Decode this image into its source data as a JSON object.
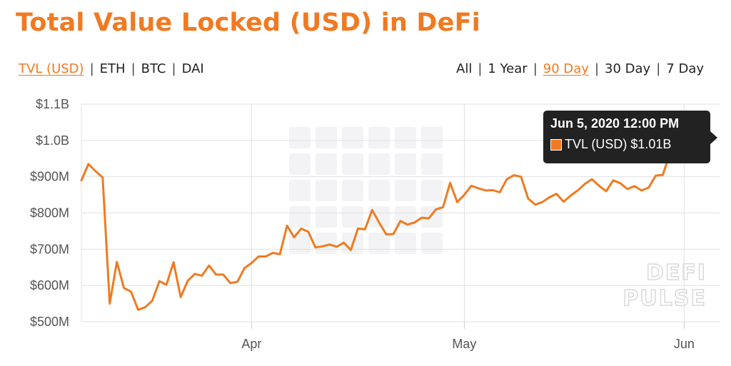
{
  "title": "Total Value Locked (USD) in DeFi",
  "currency_options": [
    {
      "label": "TVL (USD)",
      "active": true
    },
    {
      "label": "ETH",
      "active": false
    },
    {
      "label": "BTC",
      "active": false
    },
    {
      "label": "DAI",
      "active": false
    }
  ],
  "range_options": [
    {
      "label": "All",
      "active": false
    },
    {
      "label": "1 Year",
      "active": false
    },
    {
      "label": "90 Day",
      "active": true
    },
    {
      "label": "30 Day",
      "active": false
    },
    {
      "label": "7 Day",
      "active": false
    }
  ],
  "tooltip": {
    "date": "Jun 5, 2020 12:00 PM",
    "series_label": "TVL (USD)",
    "value": "$1.01B"
  },
  "watermark": [
    "DEFI",
    "PULSE"
  ],
  "colors": {
    "line": "#f07a22",
    "accent": "#f07a22",
    "grid": "#e0e0e0",
    "tooltip_bg": "#222222"
  },
  "chart_data": {
    "type": "line",
    "xlim": [
      "2020-03-08",
      "2020-06-06"
    ],
    "ylim": [
      500,
      1100
    ],
    "y_unit": "USD millions",
    "y_ticks": [
      {
        "value": 500,
        "label": "$500M"
      },
      {
        "value": 600,
        "label": "$600M"
      },
      {
        "value": 700,
        "label": "$700M"
      },
      {
        "value": 800,
        "label": "$800M"
      },
      {
        "value": 900,
        "label": "$900M"
      },
      {
        "value": 1000,
        "label": "$1.0B"
      },
      {
        "value": 1100,
        "label": "$1.1B"
      }
    ],
    "x_ticks": [
      {
        "value": "2020-04-01",
        "label": "Apr"
      },
      {
        "value": "2020-05-01",
        "label": "May"
      },
      {
        "value": "2020-06-01",
        "label": "Jun"
      }
    ],
    "grid": true,
    "legend": "none",
    "series": [
      {
        "name": "TVL (USD)",
        "points": [
          [
            "2020-03-08",
            890
          ],
          [
            "2020-03-09",
            935
          ],
          [
            "2020-03-10",
            915
          ],
          [
            "2020-03-11",
            898
          ],
          [
            "2020-03-12",
            550
          ],
          [
            "2020-03-13",
            665
          ],
          [
            "2020-03-14",
            593
          ],
          [
            "2020-03-15",
            583
          ],
          [
            "2020-03-16",
            533
          ],
          [
            "2020-03-17",
            540
          ],
          [
            "2020-03-18",
            558
          ],
          [
            "2020-03-19",
            612
          ],
          [
            "2020-03-20",
            602
          ],
          [
            "2020-03-21",
            664
          ],
          [
            "2020-03-22",
            568
          ],
          [
            "2020-03-23",
            613
          ],
          [
            "2020-03-24",
            632
          ],
          [
            "2020-03-25",
            627
          ],
          [
            "2020-03-26",
            655
          ],
          [
            "2020-03-27",
            630
          ],
          [
            "2020-03-28",
            630
          ],
          [
            "2020-03-29",
            607
          ],
          [
            "2020-03-30",
            610
          ],
          [
            "2020-03-31",
            648
          ],
          [
            "2020-04-01",
            662
          ],
          [
            "2020-04-02",
            680
          ],
          [
            "2020-04-03",
            680
          ],
          [
            "2020-04-04",
            690
          ],
          [
            "2020-04-05",
            686
          ],
          [
            "2020-04-06",
            765
          ],
          [
            "2020-04-07",
            733
          ],
          [
            "2020-04-08",
            757
          ],
          [
            "2020-04-09",
            748
          ],
          [
            "2020-04-10",
            705
          ],
          [
            "2020-04-11",
            708
          ],
          [
            "2020-04-12",
            713
          ],
          [
            "2020-04-13",
            707
          ],
          [
            "2020-04-14",
            718
          ],
          [
            "2020-04-15",
            698
          ],
          [
            "2020-04-16",
            757
          ],
          [
            "2020-04-17",
            755
          ],
          [
            "2020-04-18",
            808
          ],
          [
            "2020-04-19",
            773
          ],
          [
            "2020-04-20",
            741
          ],
          [
            "2020-04-21",
            742
          ],
          [
            "2020-04-22",
            778
          ],
          [
            "2020-04-23",
            768
          ],
          [
            "2020-04-24",
            774
          ],
          [
            "2020-04-25",
            787
          ],
          [
            "2020-04-26",
            785
          ],
          [
            "2020-04-27",
            810
          ],
          [
            "2020-04-28",
            816
          ],
          [
            "2020-04-29",
            883
          ],
          [
            "2020-04-30",
            830
          ],
          [
            "2020-05-01",
            850
          ],
          [
            "2020-05-02",
            875
          ],
          [
            "2020-05-03",
            868
          ],
          [
            "2020-05-04",
            862
          ],
          [
            "2020-05-05",
            863
          ],
          [
            "2020-05-06",
            857
          ],
          [
            "2020-05-07",
            893
          ],
          [
            "2020-05-08",
            904
          ],
          [
            "2020-05-09",
            900
          ],
          [
            "2020-05-10",
            840
          ],
          [
            "2020-05-11",
            823
          ],
          [
            "2020-05-12",
            830
          ],
          [
            "2020-05-13",
            843
          ],
          [
            "2020-05-14",
            853
          ],
          [
            "2020-05-15",
            831
          ],
          [
            "2020-05-16",
            848
          ],
          [
            "2020-05-17",
            862
          ],
          [
            "2020-05-18",
            880
          ],
          [
            "2020-05-19",
            893
          ],
          [
            "2020-05-20",
            875
          ],
          [
            "2020-05-21",
            860
          ],
          [
            "2020-05-22",
            890
          ],
          [
            "2020-05-23",
            882
          ],
          [
            "2020-05-24",
            866
          ],
          [
            "2020-05-25",
            874
          ],
          [
            "2020-05-26",
            862
          ],
          [
            "2020-05-27",
            870
          ],
          [
            "2020-05-28",
            903
          ],
          [
            "2020-05-29",
            905
          ],
          [
            "2020-05-30",
            965
          ],
          [
            "2020-05-31",
            950
          ],
          [
            "2020-06-01",
            990
          ],
          [
            "2020-06-02",
            975
          ],
          [
            "2020-06-03",
            985
          ],
          [
            "2020-06-04",
            998
          ],
          [
            "2020-06-05",
            1010
          ]
        ]
      }
    ]
  }
}
